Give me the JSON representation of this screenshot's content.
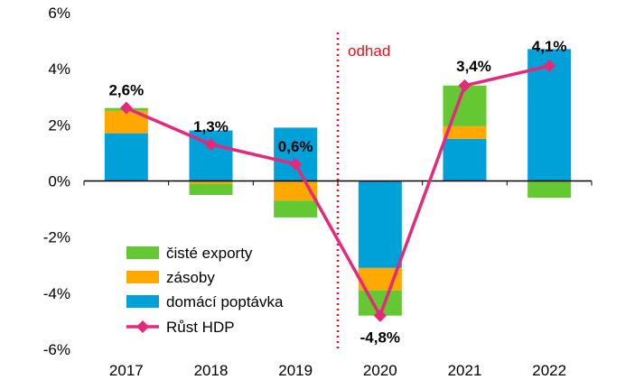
{
  "chart_data": {
    "type": "bar",
    "categories": [
      "2017",
      "2018",
      "2019",
      "2020",
      "2021",
      "2022"
    ],
    "ylim": [
      -6,
      6
    ],
    "yticks": [
      "6%",
      "4%",
      "2%",
      "0%",
      "-2%",
      "-4%",
      "-6%"
    ],
    "ytick_values": [
      6,
      4,
      2,
      0,
      -2,
      -4,
      -6
    ],
    "series": [
      {
        "name": "domácí poptávka",
        "color": "#00a0d8",
        "values": [
          1.7,
          1.8,
          1.9,
          -3.1,
          1.5,
          4.7
        ]
      },
      {
        "name": "zásoby",
        "color": "#ffa800",
        "values": [
          0.8,
          -0.1,
          -0.7,
          -0.8,
          0.45,
          0.0
        ]
      },
      {
        "name": "čisté exporty",
        "color": "#64c832",
        "values": [
          0.1,
          -0.4,
          -0.6,
          -0.9,
          1.45,
          -0.6
        ]
      }
    ],
    "line": {
      "name": "Růst HDP",
      "color": "#e6287a",
      "values": [
        2.6,
        1.3,
        0.6,
        -4.8,
        3.4,
        4.1
      ],
      "labels": [
        "2,6%",
        "1,3%",
        "0,6%",
        "-4,8%",
        "3,4%",
        "4,1%"
      ]
    },
    "legend": {
      "position": "bottom-left",
      "order": [
        "čisté exporty",
        "zásoby",
        "domácí poptávka",
        "Růst HDP"
      ]
    },
    "annotation": {
      "text": "odhad",
      "color": "#e8101a"
    }
  }
}
